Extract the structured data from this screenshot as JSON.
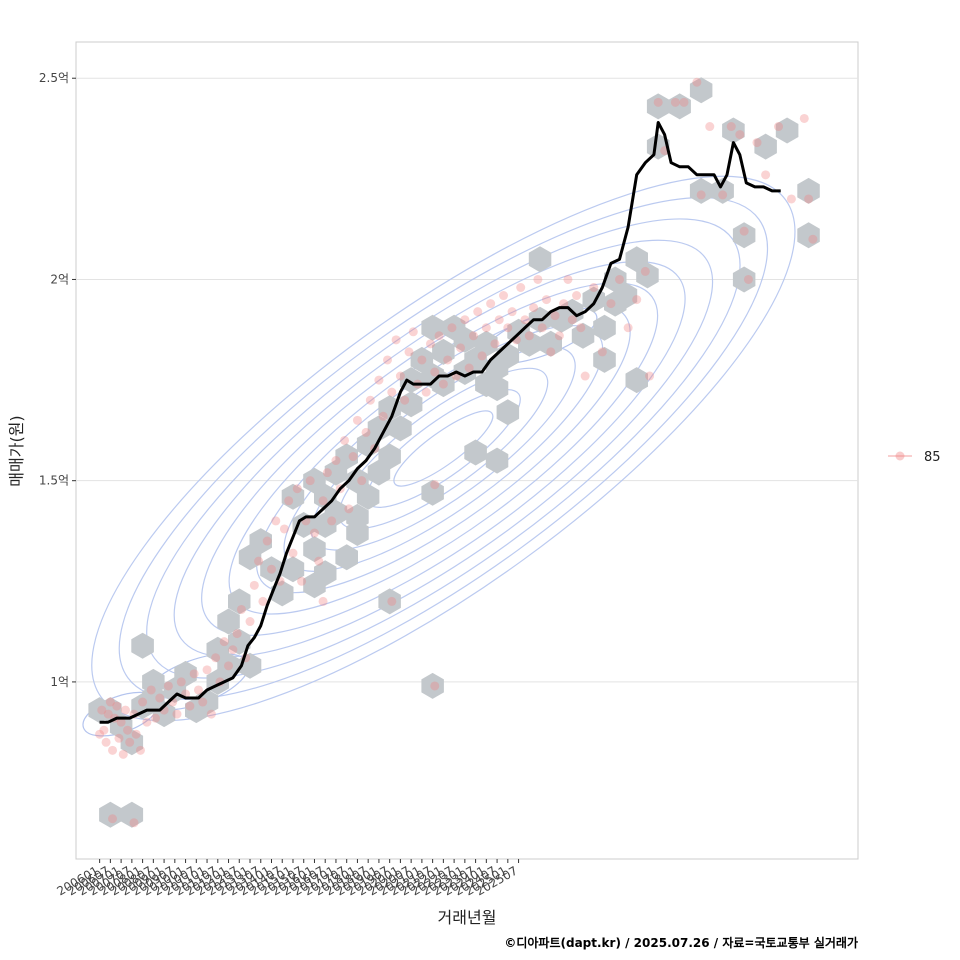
{
  "chart_data": {
    "type": "scatter",
    "xlabel": "거래년월",
    "ylabel": "매매가(원)",
    "caption": "©디아파트(dapt.kr) / 2025.07.26 / 자료=국토교통부 실거래가",
    "y_ticks": [
      {
        "value": 100000000,
        "label": "1억"
      },
      {
        "value": 150000000,
        "label": "1.5억"
      },
      {
        "value": 200000000,
        "label": "2억"
      },
      {
        "value": 250000000,
        "label": "2.5억"
      }
    ],
    "x_ticks": [
      "200601",
      "200607",
      "200701",
      "200707",
      "200801",
      "200807",
      "200901",
      "200907",
      "201001",
      "201007",
      "201101",
      "201107",
      "201201",
      "201207",
      "201301",
      "201307",
      "201401",
      "201407",
      "201501",
      "201507",
      "201601",
      "201607",
      "201701",
      "201707",
      "201801",
      "201807",
      "201901",
      "201907",
      "202001",
      "202007",
      "202101",
      "202107",
      "202201",
      "202207",
      "202301",
      "202307",
      "202401",
      "202407",
      "202501",
      "202507"
    ],
    "xlim": [
      "2006-01",
      "2025-07"
    ],
    "ylim": [
      56000000,
      259000000
    ],
    "grid": true,
    "legend": {
      "position": "right",
      "entries": [
        {
          "name": "85",
          "color": "#f08080"
        }
      ]
    },
    "colors": {
      "points": "#f08080",
      "hex": "#c3c8cc",
      "contour": "#b4c4ee",
      "trend": "#000000"
    },
    "hexbins": [
      [
        2006.0,
        93000000
      ],
      [
        2006.5,
        93000000
      ],
      [
        2007.0,
        89000000
      ],
      [
        2007.5,
        85000000
      ],
      [
        2006.5,
        67000000
      ],
      [
        2007.5,
        67000000
      ],
      [
        2008.0,
        94000000
      ],
      [
        2008.5,
        96000000
      ],
      [
        2009.0,
        92000000
      ],
      [
        2008.5,
        100000000
      ],
      [
        2008.0,
        109000000
      ],
      [
        2009.5,
        98000000
      ],
      [
        2010.0,
        102000000
      ],
      [
        2010.5,
        93000000
      ],
      [
        2011.0,
        95000000
      ],
      [
        2011.5,
        100000000
      ],
      [
        2012.0,
        104000000
      ],
      [
        2011.5,
        108000000
      ],
      [
        2012.0,
        115000000
      ],
      [
        2012.5,
        110000000
      ],
      [
        2013.0,
        104000000
      ],
      [
        2012.5,
        120000000
      ],
      [
        2013.0,
        131000000
      ],
      [
        2013.5,
        135000000
      ],
      [
        2014.0,
        128000000
      ],
      [
        2014.5,
        122000000
      ],
      [
        2015.0,
        128000000
      ],
      [
        2015.0,
        146000000
      ],
      [
        2015.5,
        139000000
      ],
      [
        2016.0,
        133000000
      ],
      [
        2016.5,
        139000000
      ],
      [
        2016.0,
        150000000
      ],
      [
        2016.5,
        146000000
      ],
      [
        2017.0,
        142000000
      ],
      [
        2017.0,
        152000000
      ],
      [
        2017.5,
        156000000
      ],
      [
        2018.0,
        150000000
      ],
      [
        2018.5,
        146000000
      ],
      [
        2018.0,
        137000000
      ],
      [
        2018.5,
        159000000
      ],
      [
        2019.0,
        152000000
      ],
      [
        2019.0,
        163000000
      ],
      [
        2019.5,
        168000000
      ],
      [
        2019.5,
        156000000
      ],
      [
        2020.0,
        163000000
      ],
      [
        2020.5,
        169000000
      ],
      [
        2020.5,
        175000000
      ],
      [
        2021.0,
        180000000
      ],
      [
        2021.5,
        176000000
      ],
      [
        2022.0,
        182000000
      ],
      [
        2022.5,
        188000000
      ],
      [
        2023.0,
        185000000
      ],
      [
        2022.0,
        174000000
      ],
      [
        2021.5,
        188000000
      ],
      [
        2023.0,
        177000000
      ],
      [
        2023.5,
        180000000
      ],
      [
        2024.0,
        184000000
      ],
      [
        2024.5,
        178000000
      ],
      [
        2024.0,
        174000000
      ],
      [
        2025.0,
        181000000
      ],
      [
        2025.5,
        187000000
      ],
      [
        2026.0,
        184000000
      ],
      [
        2026.5,
        190000000
      ],
      [
        2027.0,
        184000000
      ],
      [
        2027.5,
        190000000
      ],
      [
        2028.0,
        192000000
      ],
      [
        2028.5,
        186000000
      ],
      [
        2029.0,
        195000000
      ],
      [
        2029.5,
        188000000
      ],
      [
        2030.0,
        194000000
      ],
      [
        2030.0,
        200000000
      ],
      [
        2030.5,
        196000000
      ],
      [
        2031.0,
        205000000
      ],
      [
        2031.5,
        201000000
      ],
      [
        2029.5,
        180000000
      ],
      [
        2026.5,
        205000000
      ],
      [
        2025.0,
        167000000
      ],
      [
        2024.5,
        173000000
      ],
      [
        2023.5,
        157000000
      ],
      [
        2024.5,
        155000000
      ],
      [
        2021.5,
        147000000
      ],
      [
        2018.0,
        141000000
      ],
      [
        2019.5,
        120000000
      ],
      [
        2021.5,
        99000000
      ],
      [
        2016.5,
        127000000
      ],
      [
        2016.0,
        124000000
      ],
      [
        2017.5,
        131000000
      ],
      [
        2031.0,
        175000000
      ],
      [
        2032.0,
        243000000
      ],
      [
        2033.0,
        243000000
      ],
      [
        2034.0,
        247000000
      ],
      [
        2032.0,
        233000000
      ],
      [
        2034.0,
        222000000
      ],
      [
        2035.0,
        222000000
      ],
      [
        2035.5,
        237000000
      ],
      [
        2036.0,
        211000000
      ],
      [
        2036.0,
        200000000
      ],
      [
        2037.0,
        233000000
      ],
      [
        2038.0,
        237000000
      ],
      [
        2039.0,
        222000000
      ],
      [
        2039.0,
        211000000
      ]
    ],
    "points": [
      [
        2006.0,
        87000000
      ],
      [
        2006.1,
        93000000
      ],
      [
        2006.2,
        88000000
      ],
      [
        2006.3,
        85000000
      ],
      [
        2006.4,
        92000000
      ],
      [
        2006.5,
        95000000
      ],
      [
        2006.6,
        83000000
      ],
      [
        2006.7,
        91000000
      ],
      [
        2006.8,
        94000000
      ],
      [
        2006.9,
        86000000
      ],
      [
        2007.0,
        90000000
      ],
      [
        2007.1,
        82000000
      ],
      [
        2007.2,
        93000000
      ],
      [
        2007.3,
        88000000
      ],
      [
        2007.4,
        85000000
      ],
      [
        2007.6,
        92000000
      ],
      [
        2007.7,
        87000000
      ],
      [
        2007.9,
        83000000
      ],
      [
        2008.0,
        95000000
      ],
      [
        2008.2,
        90000000
      ],
      [
        2008.4,
        98000000
      ],
      [
        2008.6,
        91000000
      ],
      [
        2008.8,
        96000000
      ],
      [
        2009.0,
        93000000
      ],
      [
        2009.2,
        99000000
      ],
      [
        2009.4,
        95000000
      ],
      [
        2009.6,
        92000000
      ],
      [
        2009.8,
        100000000
      ],
      [
        2010.0,
        97000000
      ],
      [
        2010.2,
        94000000
      ],
      [
        2010.4,
        102000000
      ],
      [
        2010.6,
        98000000
      ],
      [
        2010.8,
        95000000
      ],
      [
        2011.0,
        103000000
      ],
      [
        2011.2,
        92000000
      ],
      [
        2011.4,
        106000000
      ],
      [
        2011.6,
        100000000
      ],
      [
        2011.8,
        110000000
      ],
      [
        2012.0,
        104000000
      ],
      [
        2012.2,
        108000000
      ],
      [
        2012.4,
        112000000
      ],
      [
        2012.6,
        118000000
      ],
      [
        2012.8,
        106000000
      ],
      [
        2013.0,
        115000000
      ],
      [
        2013.2,
        124000000
      ],
      [
        2013.4,
        130000000
      ],
      [
        2013.6,
        120000000
      ],
      [
        2013.8,
        135000000
      ],
      [
        2014.0,
        128000000
      ],
      [
        2014.2,
        140000000
      ],
      [
        2014.4,
        125000000
      ],
      [
        2014.6,
        138000000
      ],
      [
        2014.8,
        145000000
      ],
      [
        2015.0,
        132000000
      ],
      [
        2015.2,
        148000000
      ],
      [
        2015.4,
        125000000
      ],
      [
        2015.6,
        140000000
      ],
      [
        2015.8,
        150000000
      ],
      [
        2016.0,
        137000000
      ],
      [
        2016.2,
        130000000
      ],
      [
        2016.4,
        145000000
      ],
      [
        2016.6,
        152000000
      ],
      [
        2016.8,
        140000000
      ],
      [
        2017.0,
        155000000
      ],
      [
        2017.2,
        148000000
      ],
      [
        2017.4,
        160000000
      ],
      [
        2017.6,
        143000000
      ],
      [
        2017.8,
        156000000
      ],
      [
        2018.0,
        165000000
      ],
      [
        2018.2,
        150000000
      ],
      [
        2018.4,
        162000000
      ],
      [
        2018.6,
        170000000
      ],
      [
        2018.8,
        158000000
      ],
      [
        2019.0,
        175000000
      ],
      [
        2019.2,
        166000000
      ],
      [
        2019.4,
        180000000
      ],
      [
        2019.6,
        172000000
      ],
      [
        2019.8,
        185000000
      ],
      [
        2020.0,
        176000000
      ],
      [
        2020.2,
        170000000
      ],
      [
        2020.4,
        182000000
      ],
      [
        2020.6,
        187000000
      ],
      [
        2020.8,
        174000000
      ],
      [
        2021.0,
        180000000
      ],
      [
        2021.2,
        172000000
      ],
      [
        2021.4,
        184000000
      ],
      [
        2021.6,
        177000000
      ],
      [
        2021.8,
        186000000
      ],
      [
        2022.0,
        174000000
      ],
      [
        2022.2,
        180000000
      ],
      [
        2022.4,
        188000000
      ],
      [
        2022.6,
        176000000
      ],
      [
        2022.8,
        183000000
      ],
      [
        2023.0,
        190000000
      ],
      [
        2023.2,
        178000000
      ],
      [
        2023.4,
        186000000
      ],
      [
        2023.6,
        192000000
      ],
      [
        2023.8,
        181000000
      ],
      [
        2024.0,
        188000000
      ],
      [
        2024.2,
        194000000
      ],
      [
        2024.4,
        184000000
      ],
      [
        2024.6,
        190000000
      ],
      [
        2024.8,
        196000000
      ],
      [
        2025.0,
        188000000
      ],
      [
        2025.2,
        192000000
      ],
      [
        2025.4,
        185000000
      ],
      [
        2025.6,
        198000000
      ],
      [
        2025.8,
        190000000
      ],
      [
        2026.0,
        186000000
      ],
      [
        2026.2,
        193000000
      ],
      [
        2026.4,
        200000000
      ],
      [
        2026.6,
        188000000
      ],
      [
        2026.8,
        195000000
      ],
      [
        2027.0,
        182000000
      ],
      [
        2027.2,
        191000000
      ],
      [
        2027.4,
        186000000
      ],
      [
        2027.6,
        194000000
      ],
      [
        2027.8,
        200000000
      ],
      [
        2028.0,
        190000000
      ],
      [
        2028.2,
        196000000
      ],
      [
        2028.4,
        188000000
      ],
      [
        2028.6,
        176000000
      ],
      [
        2029.0,
        198000000
      ],
      [
        2029.4,
        182000000
      ],
      [
        2029.8,
        194000000
      ],
      [
        2030.2,
        200000000
      ],
      [
        2030.6,
        188000000
      ],
      [
        2031.0,
        195000000
      ],
      [
        2031.4,
        202000000
      ],
      [
        2031.6,
        176000000
      ],
      [
        2032.0,
        244000000
      ],
      [
        2032.3,
        232000000
      ],
      [
        2032.8,
        244000000
      ],
      [
        2033.2,
        244000000
      ],
      [
        2033.8,
        249000000
      ],
      [
        2034.0,
        221000000
      ],
      [
        2034.4,
        238000000
      ],
      [
        2035.0,
        221000000
      ],
      [
        2035.4,
        238000000
      ],
      [
        2035.8,
        236000000
      ],
      [
        2036.0,
        212000000
      ],
      [
        2036.2,
        200000000
      ],
      [
        2036.6,
        234000000
      ],
      [
        2037.0,
        226000000
      ],
      [
        2037.6,
        238000000
      ],
      [
        2038.2,
        220000000
      ],
      [
        2038.8,
        240000000
      ],
      [
        2039.0,
        220000000
      ],
      [
        2039.2,
        210000000
      ],
      [
        2016.4,
        120000000
      ],
      [
        2021.6,
        99000000
      ],
      [
        2019.6,
        120000000
      ],
      [
        2021.6,
        149000000
      ],
      [
        2006.6,
        66000000
      ],
      [
        2007.6,
        65000000
      ]
    ],
    "trend": [
      [
        2006.0,
        90000000
      ],
      [
        2006.4,
        90000000
      ],
      [
        2006.8,
        91000000
      ],
      [
        2007.4,
        91000000
      ],
      [
        2007.8,
        92000000
      ],
      [
        2008.2,
        93000000
      ],
      [
        2008.8,
        93000000
      ],
      [
        2009.2,
        95000000
      ],
      [
        2009.6,
        97000000
      ],
      [
        2010.0,
        96000000
      ],
      [
        2010.6,
        96000000
      ],
      [
        2011.0,
        98000000
      ],
      [
        2011.4,
        99000000
      ],
      [
        2011.8,
        100000000
      ],
      [
        2012.2,
        101000000
      ],
      [
        2012.6,
        104000000
      ],
      [
        2012.9,
        109000000
      ],
      [
        2013.2,
        111000000
      ],
      [
        2013.5,
        114000000
      ],
      [
        2013.8,
        119000000
      ],
      [
        2014.1,
        123000000
      ],
      [
        2014.4,
        127000000
      ],
      [
        2014.7,
        132000000
      ],
      [
        2015.0,
        136000000
      ],
      [
        2015.3,
        140000000
      ],
      [
        2015.6,
        141000000
      ],
      [
        2016.0,
        141000000
      ],
      [
        2016.4,
        143000000
      ],
      [
        2016.8,
        145000000
      ],
      [
        2017.2,
        148000000
      ],
      [
        2017.6,
        150000000
      ],
      [
        2018.0,
        153000000
      ],
      [
        2018.4,
        155000000
      ],
      [
        2018.8,
        158000000
      ],
      [
        2019.2,
        162000000
      ],
      [
        2019.6,
        166000000
      ],
      [
        2020.0,
        172000000
      ],
      [
        2020.3,
        175000000
      ],
      [
        2020.6,
        174000000
      ],
      [
        2021.0,
        174000000
      ],
      [
        2021.4,
        174000000
      ],
      [
        2021.8,
        176000000
      ],
      [
        2022.2,
        176000000
      ],
      [
        2022.6,
        177000000
      ],
      [
        2023.0,
        176000000
      ],
      [
        2023.4,
        177000000
      ],
      [
        2023.8,
        177000000
      ],
      [
        2024.2,
        180000000
      ],
      [
        2024.6,
        182000000
      ],
      [
        2025.0,
        184000000
      ],
      [
        2025.4,
        186000000
      ],
      [
        2025.8,
        188000000
      ],
      [
        2026.2,
        190000000
      ],
      [
        2026.6,
        190000000
      ],
      [
        2027.0,
        192000000
      ],
      [
        2027.4,
        193000000
      ],
      [
        2027.8,
        193000000
      ],
      [
        2028.2,
        191000000
      ],
      [
        2028.6,
        192000000
      ],
      [
        2029.0,
        194000000
      ],
      [
        2029.4,
        198000000
      ],
      [
        2029.8,
        204000000
      ],
      [
        2030.2,
        205000000
      ],
      [
        2030.6,
        213000000
      ],
      [
        2031.0,
        226000000
      ],
      [
        2031.4,
        229000000
      ],
      [
        2031.8,
        231000000
      ],
      [
        2032.0,
        239000000
      ],
      [
        2032.3,
        236000000
      ],
      [
        2032.6,
        229000000
      ],
      [
        2033.0,
        228000000
      ],
      [
        2033.4,
        228000000
      ],
      [
        2033.8,
        226000000
      ],
      [
        2034.2,
        226000000
      ],
      [
        2034.6,
        226000000
      ],
      [
        2034.9,
        223000000
      ],
      [
        2035.2,
        226000000
      ],
      [
        2035.5,
        234000000
      ],
      [
        2035.8,
        231000000
      ],
      [
        2036.1,
        224000000
      ],
      [
        2036.5,
        223000000
      ],
      [
        2036.9,
        223000000
      ],
      [
        2037.3,
        222000000
      ],
      [
        2037.7,
        222000000
      ]
    ]
  }
}
